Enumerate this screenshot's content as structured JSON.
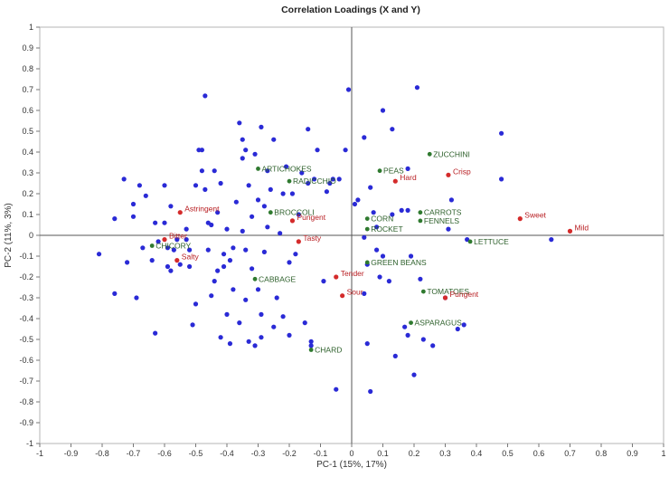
{
  "chart_data": {
    "type": "scatter",
    "title": "Correlation Loadings (X and Y)",
    "xlabel": "PC-1 (15%, 17%)",
    "ylabel": "PC-2 (11%, 3%)",
    "xlim": [
      -1,
      1
    ],
    "ylim": [
      -1,
      1
    ],
    "x_ticks": [
      "-1",
      "-0.9",
      "-0.8",
      "-0.7",
      "-0.6",
      "-0.5",
      "-0.4",
      "-0.3",
      "-0.2",
      "-0.1",
      "0",
      "0.1",
      "0.2",
      "0.3",
      "0.4",
      "0.5",
      "0.6",
      "0.7",
      "0.8",
      "0.9",
      "1"
    ],
    "y_ticks": [
      "1",
      "0.9",
      "0.8",
      "0.7",
      "0.6",
      "0.5",
      "0.4",
      "0.3",
      "0.2",
      "0.1",
      "0",
      "-0.1",
      "-0.2",
      "-0.3",
      "-0.4",
      "-0.5",
      "-0.6",
      "-0.7",
      "-0.8",
      "-0.9",
      "-1"
    ],
    "colors": {
      "panelists": "#2a2ad6",
      "attributes": "#d42b2b",
      "vegetables": "#2f7a2f",
      "axis": "#555555"
    },
    "attributes": [
      {
        "label": "Astringent",
        "x": -0.55,
        "y": 0.11
      },
      {
        "label": "Bitter",
        "x": -0.6,
        "y": -0.02
      },
      {
        "label": "Salty",
        "x": -0.56,
        "y": -0.12
      },
      {
        "label": "Pungent",
        "x": -0.19,
        "y": 0.07
      },
      {
        "label": "Tasty",
        "x": -0.17,
        "y": -0.03
      },
      {
        "label": "Hard",
        "x": 0.14,
        "y": 0.26
      },
      {
        "label": "Crisp",
        "x": 0.31,
        "y": 0.29
      },
      {
        "label": "Sweet",
        "x": 0.54,
        "y": 0.08
      },
      {
        "label": "Mild",
        "x": 0.7,
        "y": 0.02
      },
      {
        "label": "Tender",
        "x": -0.05,
        "y": -0.2
      },
      {
        "label": "Sour",
        "x": -0.03,
        "y": -0.29
      },
      {
        "label": "Pungent",
        "x": 0.3,
        "y": -0.3
      }
    ],
    "vegetables": [
      {
        "label": "ZUCCHINI",
        "x": 0.25,
        "y": 0.39
      },
      {
        "label": "ARTICHOKES",
        "x": -0.3,
        "y": 0.32
      },
      {
        "label": "PEAS",
        "x": 0.09,
        "y": 0.31
      },
      {
        "label": "RADICCHIO",
        "x": -0.2,
        "y": 0.26
      },
      {
        "label": "BROCCOLI",
        "x": -0.26,
        "y": 0.11
      },
      {
        "label": "CARROTS",
        "x": 0.22,
        "y": 0.11
      },
      {
        "label": "CORN",
        "x": 0.05,
        "y": 0.08
      },
      {
        "label": "FENNELS",
        "x": 0.22,
        "y": 0.07
      },
      {
        "label": "ROCKET",
        "x": 0.05,
        "y": 0.03
      },
      {
        "label": "CHICORY",
        "x": -0.64,
        "y": -0.05
      },
      {
        "label": "LETTUCE",
        "x": 0.38,
        "y": -0.03
      },
      {
        "label": "GREEN BEANS",
        "x": 0.05,
        "y": -0.13
      },
      {
        "label": "CABBAGE",
        "x": -0.31,
        "y": -0.21
      },
      {
        "label": "TOMATOES",
        "x": 0.23,
        "y": -0.27
      },
      {
        "label": "ASPARAGUS",
        "x": 0.19,
        "y": -0.42
      },
      {
        "label": "CHARD",
        "x": -0.13,
        "y": -0.55
      }
    ],
    "panelists": [
      [
        -0.81,
        -0.09
      ],
      [
        -0.76,
        0.08
      ],
      [
        -0.76,
        -0.28
      ],
      [
        -0.73,
        0.27
      ],
      [
        -0.72,
        -0.13
      ],
      [
        -0.7,
        0.15
      ],
      [
        -0.7,
        0.09
      ],
      [
        -0.69,
        -0.3
      ],
      [
        -0.68,
        0.24
      ],
      [
        -0.67,
        -0.06
      ],
      [
        -0.66,
        0.19
      ],
      [
        -0.64,
        -0.12
      ],
      [
        -0.63,
        0.06
      ],
      [
        -0.63,
        -0.47
      ],
      [
        -0.62,
        -0.03
      ],
      [
        -0.6,
        0.24
      ],
      [
        -0.6,
        0.06
      ],
      [
        -0.59,
        -0.06
      ],
      [
        -0.59,
        -0.15
      ],
      [
        -0.58,
        0.14
      ],
      [
        -0.58,
        -0.17
      ],
      [
        -0.57,
        -0.07
      ],
      [
        -0.56,
        -0.02
      ],
      [
        -0.55,
        -0.14
      ],
      [
        -0.53,
        -0.02
      ],
      [
        -0.53,
        0.03
      ],
      [
        -0.52,
        -0.07
      ],
      [
        -0.52,
        -0.15
      ],
      [
        -0.51,
        -0.43
      ],
      [
        -0.5,
        0.24
      ],
      [
        -0.5,
        -0.33
      ],
      [
        -0.49,
        0.41
      ],
      [
        -0.48,
        0.41
      ],
      [
        -0.48,
        0.31
      ],
      [
        -0.47,
        0.67
      ],
      [
        -0.47,
        0.22
      ],
      [
        -0.46,
        -0.07
      ],
      [
        -0.46,
        0.06
      ],
      [
        -0.45,
        0.05
      ],
      [
        -0.45,
        -0.29
      ],
      [
        -0.44,
        -0.22
      ],
      [
        -0.44,
        0.31
      ],
      [
        -0.43,
        0.11
      ],
      [
        -0.43,
        -0.17
      ],
      [
        -0.42,
        -0.49
      ],
      [
        -0.42,
        0.25
      ],
      [
        -0.41,
        -0.09
      ],
      [
        -0.41,
        -0.15
      ],
      [
        -0.4,
        -0.38
      ],
      [
        -0.4,
        0.03
      ],
      [
        -0.39,
        -0.52
      ],
      [
        -0.39,
        -0.12
      ],
      [
        -0.38,
        -0.06
      ],
      [
        -0.38,
        -0.26
      ],
      [
        -0.37,
        0.16
      ],
      [
        -0.36,
        0.54
      ],
      [
        -0.36,
        -0.42
      ],
      [
        -0.35,
        0.46
      ],
      [
        -0.35,
        0.37
      ],
      [
        -0.35,
        0.02
      ],
      [
        -0.34,
        -0.07
      ],
      [
        -0.34,
        -0.31
      ],
      [
        -0.34,
        0.41
      ],
      [
        -0.33,
        0.24
      ],
      [
        -0.33,
        -0.51
      ],
      [
        -0.32,
        -0.16
      ],
      [
        -0.32,
        0.09
      ],
      [
        -0.31,
        -0.53
      ],
      [
        -0.31,
        0.39
      ],
      [
        -0.3,
        -0.26
      ],
      [
        -0.3,
        0.17
      ],
      [
        -0.29,
        0.52
      ],
      [
        -0.29,
        -0.38
      ],
      [
        -0.29,
        -0.49
      ],
      [
        -0.28,
        0.14
      ],
      [
        -0.28,
        -0.08
      ],
      [
        -0.27,
        0.31
      ],
      [
        -0.27,
        0.04
      ],
      [
        -0.26,
        0.22
      ],
      [
        -0.25,
        -0.44
      ],
      [
        -0.25,
        0.46
      ],
      [
        -0.24,
        -0.3
      ],
      [
        -0.23,
        0.01
      ],
      [
        -0.22,
        -0.39
      ],
      [
        -0.22,
        0.2
      ],
      [
        -0.21,
        0.33
      ],
      [
        -0.2,
        -0.13
      ],
      [
        -0.2,
        -0.48
      ],
      [
        -0.19,
        0.2
      ],
      [
        -0.18,
        -0.09
      ],
      [
        -0.17,
        0.1
      ],
      [
        -0.16,
        0.3
      ],
      [
        -0.15,
        -0.42
      ],
      [
        -0.14,
        0.51
      ],
      [
        -0.14,
        0.25
      ],
      [
        -0.13,
        -0.51
      ],
      [
        -0.13,
        -0.53
      ],
      [
        -0.12,
        0.27
      ],
      [
        -0.11,
        0.41
      ],
      [
        -0.09,
        -0.22
      ],
      [
        -0.08,
        0.21
      ],
      [
        -0.07,
        0.25
      ],
      [
        -0.06,
        0.27
      ],
      [
        -0.05,
        -0.74
      ],
      [
        -0.04,
        0.27
      ],
      [
        -0.02,
        0.41
      ],
      [
        -0.01,
        0.7
      ],
      [
        0.01,
        0.15
      ],
      [
        0.02,
        0.17
      ],
      [
        0.04,
        -0.01
      ],
      [
        0.04,
        -0.28
      ],
      [
        0.04,
        0.47
      ],
      [
        0.05,
        -0.52
      ],
      [
        0.05,
        -0.14
      ],
      [
        0.06,
        0.23
      ],
      [
        0.06,
        -0.75
      ],
      [
        0.07,
        0.11
      ],
      [
        0.08,
        0.04
      ],
      [
        0.08,
        -0.07
      ],
      [
        0.09,
        -0.2
      ],
      [
        0.1,
        -0.1
      ],
      [
        0.1,
        0.6
      ],
      [
        0.12,
        -0.22
      ],
      [
        0.13,
        0.51
      ],
      [
        0.13,
        0.1
      ],
      [
        0.14,
        -0.58
      ],
      [
        0.16,
        0.12
      ],
      [
        0.17,
        -0.44
      ],
      [
        0.18,
        0.12
      ],
      [
        0.18,
        -0.48
      ],
      [
        0.18,
        0.32
      ],
      [
        0.19,
        -0.1
      ],
      [
        0.2,
        -0.67
      ],
      [
        0.21,
        0.71
      ],
      [
        0.22,
        -0.21
      ],
      [
        0.23,
        -0.5
      ],
      [
        0.26,
        -0.53
      ],
      [
        0.3,
        -0.3
      ],
      [
        0.31,
        0.03
      ],
      [
        0.32,
        0.17
      ],
      [
        0.34,
        -0.45
      ],
      [
        0.36,
        -0.43
      ],
      [
        0.37,
        -0.02
      ],
      [
        0.48,
        0.49
      ],
      [
        0.48,
        0.27
      ],
      [
        0.64,
        -0.02
      ]
    ]
  }
}
